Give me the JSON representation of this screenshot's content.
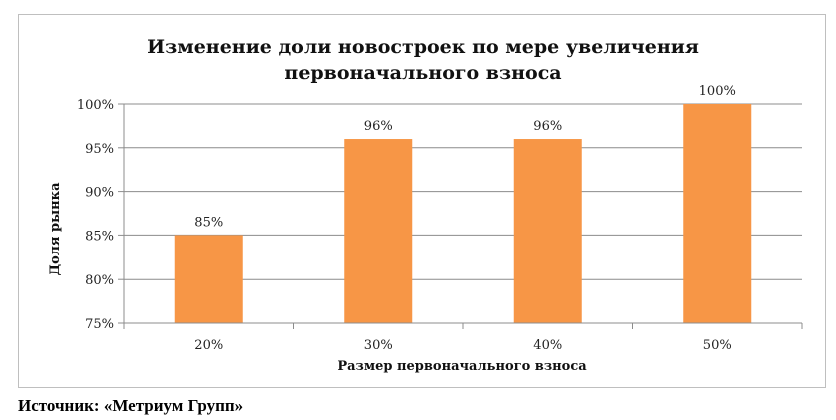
{
  "chart_data": {
    "type": "bar",
    "title_lines": [
      "Изменение доли новостроек по мере увеличения",
      "первоначального взноса"
    ],
    "categories": [
      "20%",
      "30%",
      "40%",
      "50%"
    ],
    "values": [
      85,
      96,
      96,
      100
    ],
    "data_labels": [
      "85%",
      "96%",
      "96%",
      "100%"
    ],
    "xlabel": "Размер первоначального взноса",
    "ylabel": "Доля рынка",
    "ylim": [
      75,
      100
    ],
    "yticks": [
      75,
      80,
      85,
      90,
      95,
      100
    ],
    "ytick_labels": [
      "75%",
      "80%",
      "85%",
      "90%",
      "95%",
      "100%"
    ],
    "grid": true,
    "legend": "none",
    "bar_color": "#f79646"
  },
  "source": "Источник: «Метриум Групп»"
}
